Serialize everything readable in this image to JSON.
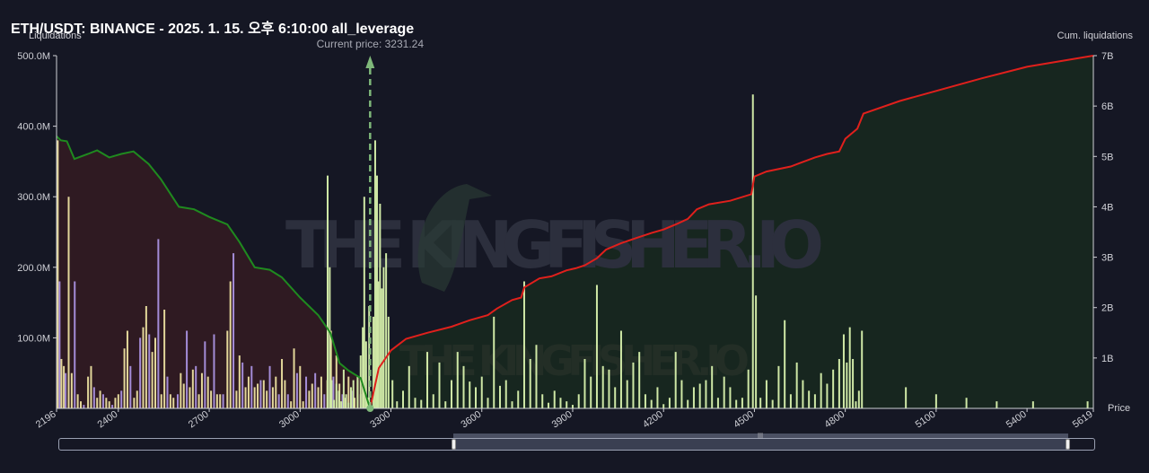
{
  "title": "ETH/USDT: BINANCE - 2025. 1. 15. 오후 6:10:00 all_leverage",
  "watermark": "THE KINGFISHER.IO",
  "chart_data": {
    "type": "bar",
    "title": "ETH/USDT: BINANCE - 2025. 1. 15. 오후 6:10:00 all_leverage",
    "xlabel": "Price",
    "ylabel": "Liquidations",
    "y2label": "Cum. liquidations",
    "current_price_label": "Current price: 3231.24",
    "current_price": 3231.24,
    "xlim": [
      2196,
      5619
    ],
    "ylim": [
      0,
      500
    ],
    "y2lim": [
      0,
      7
    ],
    "x_ticks": [
      "2196",
      "2400",
      "2700",
      "3000",
      "3300",
      "3600",
      "3900",
      "4200",
      "4500",
      "4800",
      "5100",
      "5400",
      "5619"
    ],
    "x_tick_values": [
      2196,
      2400,
      2700,
      3000,
      3300,
      3600,
      3900,
      4200,
      4500,
      4800,
      5100,
      5400,
      5619
    ],
    "y_ticks": [
      "500.0M",
      "400.0M",
      "300.0M",
      "200.0M",
      "100.0M"
    ],
    "y_tick_values": [
      500,
      400,
      300,
      200,
      100
    ],
    "y2_ticks": [
      "7B",
      "6B",
      "5B",
      "4B",
      "3B",
      "2B",
      "1B"
    ],
    "y2_tick_values": [
      7,
      6,
      5,
      4,
      3,
      2,
      1
    ],
    "colors": {
      "short_bar": "#cfe8a6",
      "long_bar_yellow": "#e3d79a",
      "long_bar_purple": "#a48cd8",
      "cum_long_line": "#1f8a1f",
      "cum_short_line": "#e0201c",
      "cum_long_fill": "#2f1a22",
      "cum_short_fill": "#17261f",
      "current_price": "#7fb87a"
    },
    "series": [
      {
        "kind": "cum_long",
        "x": [
          2196,
          2210,
          2230,
          2255,
          2300,
          2330,
          2370,
          2410,
          2450,
          2500,
          2540,
          2600,
          2650,
          2700,
          2760,
          2800,
          2850,
          2900,
          2940,
          3000,
          3060,
          3100,
          3130,
          3160,
          3200,
          3231
        ],
        "values": [
          5.4,
          5.32,
          5.3,
          4.95,
          5.05,
          5.12,
          4.98,
          5.05,
          5.1,
          4.85,
          4.55,
          4.0,
          3.95,
          3.8,
          3.65,
          3.3,
          2.8,
          2.75,
          2.6,
          2.2,
          1.85,
          1.5,
          0.9,
          0.75,
          0.6,
          0.0
        ]
      },
      {
        "kind": "cum_short",
        "x": [
          3231,
          3260,
          3300,
          3350,
          3420,
          3500,
          3560,
          3620,
          3650,
          3700,
          3730,
          3740,
          3790,
          3830,
          3880,
          3910,
          3940,
          3980,
          4010,
          4060,
          4110,
          4160,
          4200,
          4240,
          4280,
          4310,
          4350,
          4420,
          4490,
          4500,
          4540,
          4620,
          4700,
          4740,
          4780,
          4800,
          4840,
          4860,
          4980,
          5100,
          5250,
          5400,
          5619
        ],
        "values": [
          0.0,
          0.8,
          1.15,
          1.38,
          1.5,
          1.62,
          1.75,
          1.85,
          1.98,
          2.15,
          2.2,
          2.4,
          2.58,
          2.62,
          2.74,
          2.78,
          2.84,
          2.98,
          3.15,
          3.28,
          3.38,
          3.48,
          3.55,
          3.65,
          3.76,
          3.95,
          4.05,
          4.12,
          4.25,
          4.6,
          4.7,
          4.8,
          4.98,
          5.05,
          5.1,
          5.35,
          5.55,
          5.85,
          6.1,
          6.3,
          6.55,
          6.78,
          7.0
        ]
      },
      {
        "kind": "short_bars",
        "x": [
          3091,
          3098,
          3104,
          3112,
          3120,
          3128,
          3136,
          3144,
          3152,
          3160,
          3168,
          3176,
          3190,
          3200,
          3207,
          3212,
          3218,
          3224,
          3228,
          3242,
          3248,
          3254,
          3258,
          3264,
          3270,
          3276,
          3284,
          3292,
          3305,
          3320,
          3340,
          3360,
          3380,
          3400,
          3420,
          3440,
          3460,
          3480,
          3500,
          3520,
          3540,
          3560,
          3580,
          3600,
          3620,
          3640,
          3660,
          3680,
          3700,
          3720,
          3740,
          3760,
          3780,
          3800,
          3820,
          3840,
          3860,
          3880,
          3900,
          3920,
          3940,
          3960,
          3980,
          4000,
          4020,
          4040,
          4060,
          4080,
          4100,
          4120,
          4140,
          4160,
          4180,
          4200,
          4220,
          4240,
          4260,
          4280,
          4300,
          4320,
          4340,
          4360,
          4380,
          4400,
          4420,
          4440,
          4460,
          4480,
          4495,
          4505,
          4520,
          4540,
          4560,
          4580,
          4600,
          4620,
          4640,
          4660,
          4680,
          4700,
          4720,
          4740,
          4760,
          4780,
          4795,
          4805,
          4815,
          4825,
          4835,
          4845,
          4855,
          5000,
          5100,
          5200,
          5300,
          5420,
          5600
        ],
        "values": [
          330,
          200,
          40,
          12,
          35,
          25,
          10,
          55,
          20,
          8,
          30,
          40,
          45,
          75,
          115,
          300,
          95,
          15,
          145,
          130,
          380,
          330,
          180,
          290,
          170,
          200,
          220,
          130,
          40,
          10,
          25,
          60,
          15,
          12,
          80,
          20,
          65,
          10,
          40,
          80,
          60,
          38,
          30,
          45,
          15,
          130,
          32,
          40,
          10,
          25,
          180,
          70,
          90,
          20,
          8,
          25,
          15,
          10,
          5,
          20,
          70,
          45,
          175,
          60,
          55,
          30,
          110,
          40,
          65,
          80,
          20,
          12,
          30,
          6,
          15,
          80,
          40,
          12,
          30,
          35,
          40,
          60,
          15,
          45,
          30,
          12,
          15,
          55,
          445,
          160,
          15,
          40,
          12,
          60,
          125,
          20,
          65,
          40,
          25,
          20,
          50,
          35,
          55,
          70,
          105,
          65,
          115,
          70,
          10,
          25,
          110,
          30,
          20,
          15,
          10,
          10,
          10
        ]
      },
      {
        "kind": "long_bars",
        "x": [
          2200,
          2206,
          2212,
          2220,
          2226,
          2236,
          2246,
          2256,
          2266,
          2276,
          2286,
          2300,
          2310,
          2320,
          2330,
          2340,
          2350,
          2360,
          2370,
          2380,
          2390,
          2400,
          2410,
          2420,
          2430,
          2440,
          2452,
          2462,
          2472,
          2482,
          2492,
          2502,
          2512,
          2522,
          2532,
          2542,
          2552,
          2562,
          2572,
          2582,
          2596,
          2606,
          2616,
          2626,
          2636,
          2646,
          2656,
          2666,
          2676,
          2686,
          2696,
          2706,
          2716,
          2726,
          2736,
          2746,
          2760,
          2770,
          2780,
          2790,
          2800,
          2810,
          2820,
          2830,
          2840,
          2850,
          2860,
          2870,
          2880,
          2890,
          2900,
          2910,
          2920,
          2930,
          2940,
          2950,
          2960,
          2970,
          2980,
          2990,
          3000,
          3010,
          3020,
          3030,
          3040,
          3050,
          3060,
          3070,
          3080,
          3090,
          3102,
          3110,
          3120,
          3130,
          3140,
          3150,
          3160,
          3170,
          3180,
          3190,
          3200,
          3210,
          3220
        ],
        "values": [
          380,
          180,
          70,
          60,
          50,
          300,
          50,
          180,
          20,
          10,
          5,
          45,
          60,
          30,
          15,
          25,
          20,
          15,
          10,
          5,
          15,
          20,
          25,
          85,
          110,
          60,
          15,
          25,
          100,
          115,
          145,
          105,
          80,
          100,
          240,
          20,
          140,
          45,
          20,
          15,
          20,
          50,
          35,
          110,
          30,
          55,
          60,
          20,
          50,
          95,
          45,
          25,
          105,
          20,
          20,
          20,
          110,
          180,
          220,
          25,
          75,
          65,
          30,
          45,
          60,
          30,
          35,
          40,
          40,
          25,
          60,
          30,
          45,
          20,
          70,
          40,
          20,
          10,
          85,
          50,
          60,
          10,
          45,
          25,
          35,
          50,
          30,
          45,
          20,
          40,
          110,
          45,
          75,
          35,
          20,
          15,
          45,
          25,
          15,
          40,
          20,
          15,
          10
        ]
      }
    ]
  }
}
